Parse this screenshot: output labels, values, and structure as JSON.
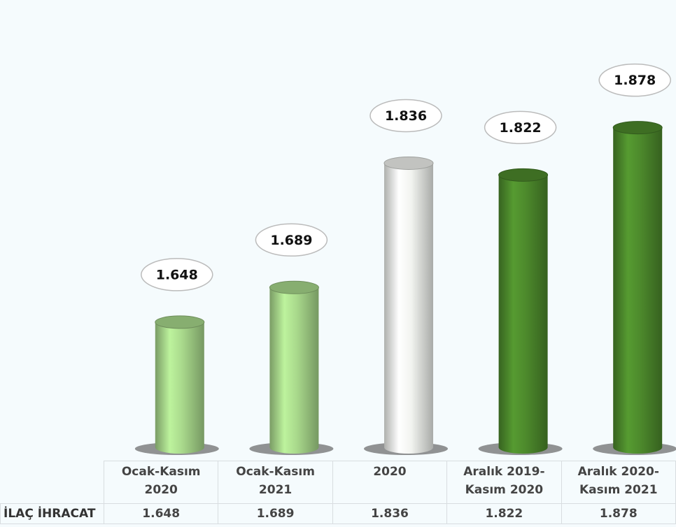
{
  "chart_data": {
    "type": "bar",
    "categories": [
      "Ocak-Kasım 2020",
      "Ocak-Kasım 2021",
      "2020",
      "Aralık 2019-Kasım 2020",
      "Aralık 2020-Kasım 2021"
    ],
    "series": [
      {
        "name": "İLAÇ İHRACAT",
        "colors": [
          "#a9d98c",
          "#a9d98c",
          "#f2f4f0",
          "#4d8a2c",
          "#4d8a2c"
        ],
        "values": [
          1.648,
          1.689,
          1.836,
          1.822,
          1.878
        ]
      }
    ],
    "ylim": [
      1.5,
      1.9
    ]
  }
}
